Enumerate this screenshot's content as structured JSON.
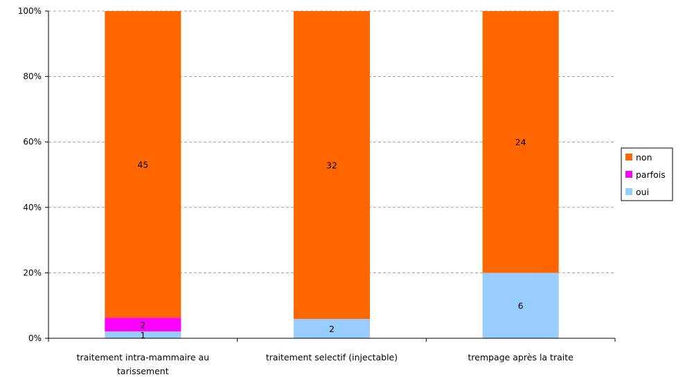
{
  "chart_data": {
    "type": "bar",
    "stacked": "percent",
    "categories": [
      [
        "traitement intra-mammaire au",
        "tarissement"
      ],
      [
        "traitement selectif (injectable)"
      ],
      [
        "trempage après la traite"
      ]
    ],
    "series": [
      {
        "name": "oui",
        "values": [
          1,
          2,
          6
        ],
        "color": "#99ccff"
      },
      {
        "name": "parfois",
        "values": [
          2,
          0,
          0
        ],
        "color": "#ff00ff"
      },
      {
        "name": "non",
        "values": [
          45,
          32,
          24
        ],
        "color": "#ff6600"
      }
    ],
    "legend_order": [
      "non",
      "parfois",
      "oui"
    ],
    "y_ticks": [
      "0%",
      "20%",
      "40%",
      "60%",
      "80%",
      "100%"
    ],
    "ylim": [
      0,
      100
    ],
    "grid": true,
    "legend_position": "right",
    "title": "",
    "xlabel": "",
    "ylabel": ""
  }
}
